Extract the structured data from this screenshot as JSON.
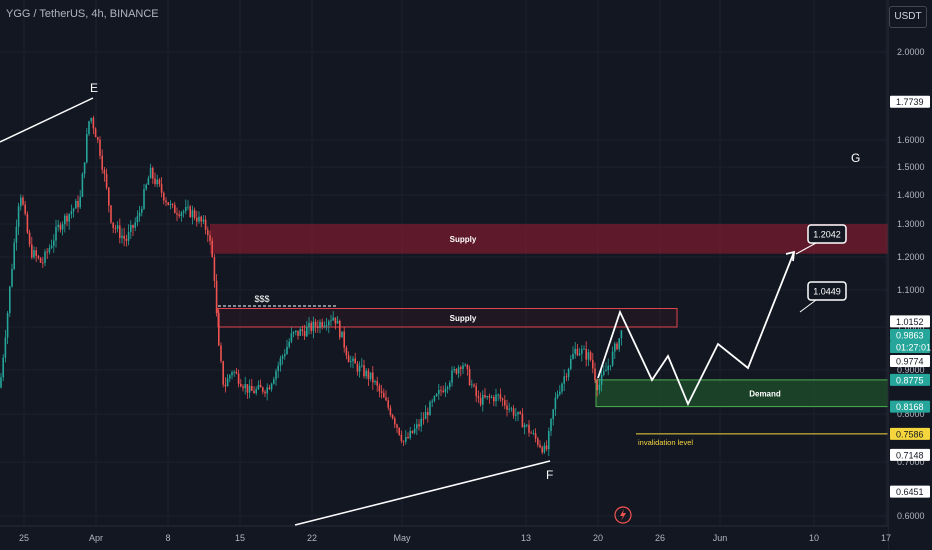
{
  "header": {
    "symbol": "YGG / TetherUS, 4h, BINANCE"
  },
  "currency_button": "USDT",
  "colors": {
    "background": "#131722",
    "up": "#26a69a",
    "down": "#ef5350",
    "supply": "#7b1f2e",
    "demand": "#1e4d2b",
    "invalidation": "#f5d63d"
  },
  "chart_data": {
    "type": "candlestick",
    "title": "YGG / TetherUS, 4h, BINANCE",
    "y_ticks": [
      "2.0000",
      "1.6000",
      "1.5000",
      "1.4000",
      "1.3000",
      "1.2000",
      "1.1000",
      "1.0000",
      "0.9000",
      "0.8000",
      "0.7000",
      "0.6000"
    ],
    "x_ticks": [
      "25",
      "Apr",
      "8",
      "15",
      "22",
      "May",
      "13",
      "20",
      "26",
      "Jun",
      "10",
      "17"
    ],
    "price_labels": [
      {
        "text": "1.7739",
        "value": 1.7739,
        "style": "white"
      },
      {
        "text": "1.0152",
        "value": 1.0152,
        "style": "white"
      },
      {
        "text": "0.9863",
        "value": 0.9863,
        "style": "green"
      },
      {
        "text": "01:27:01",
        "style": "green"
      },
      {
        "text": "0.9774",
        "value": 0.9774,
        "style": "white"
      },
      {
        "text": "0.8775",
        "value": 0.8775,
        "style": "green"
      },
      {
        "text": "0.8168",
        "value": 0.8168,
        "style": "green"
      },
      {
        "text": "0.7586",
        "value": 0.7586,
        "style": "yellow"
      },
      {
        "text": "0.7148",
        "value": 0.7148,
        "style": "white"
      },
      {
        "text": "0.6451",
        "value": 0.6451,
        "style": "white"
      }
    ],
    "zones": [
      {
        "label": "Supply",
        "top": 1.3,
        "bottom": 1.21,
        "kind": "supply-fill"
      },
      {
        "label": "Supply",
        "top": 1.05,
        "bottom": 1.0,
        "kind": "supply-outline"
      },
      {
        "label": "Demand",
        "top": 0.8775,
        "bottom": 0.8168,
        "kind": "demand"
      }
    ],
    "annotations": {
      "wave_labels": [
        "E",
        "F",
        "G"
      ],
      "liquidity": "$$$",
      "invalidation": "invalidation level",
      "targets": [
        "1.2042",
        "1.0449"
      ]
    }
  }
}
